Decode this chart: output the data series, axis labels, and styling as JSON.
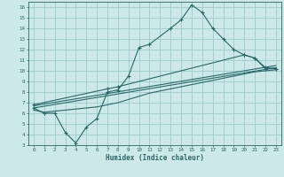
{
  "title": "",
  "xlabel": "Humidex (Indice chaleur)",
  "xlim": [
    -0.5,
    23.5
  ],
  "ylim": [
    3,
    16.5
  ],
  "xticks": [
    0,
    1,
    2,
    3,
    4,
    5,
    6,
    7,
    8,
    9,
    10,
    11,
    12,
    13,
    14,
    15,
    16,
    17,
    18,
    19,
    20,
    21,
    22,
    23
  ],
  "yticks": [
    3,
    4,
    5,
    6,
    7,
    8,
    9,
    10,
    11,
    12,
    13,
    14,
    15,
    16
  ],
  "bg_color": "#cce8e8",
  "grid_color": "#99cccc",
  "line_color": "#2a6868",
  "line1_x": [
    0,
    1,
    2,
    3,
    4,
    5,
    6,
    7,
    8,
    9,
    10,
    11,
    13,
    14,
    15,
    16,
    17,
    18,
    19,
    20,
    21,
    22,
    23
  ],
  "line1_y": [
    6.5,
    6.0,
    6.0,
    4.2,
    3.2,
    4.7,
    5.5,
    8.0,
    8.2,
    9.5,
    12.2,
    12.5,
    14.0,
    14.8,
    16.2,
    15.5,
    14.0,
    13.0,
    12.0,
    11.5,
    11.2,
    10.2,
    10.2
  ],
  "line2_x": [
    0,
    1,
    2,
    3,
    4,
    5,
    6,
    7,
    8,
    9,
    10,
    11,
    12,
    13,
    14,
    15,
    16,
    17,
    18,
    19,
    20,
    21,
    22,
    23
  ],
  "line2_y": [
    6.3,
    6.1,
    6.2,
    6.3,
    6.4,
    6.5,
    6.6,
    6.8,
    7.0,
    7.3,
    7.6,
    7.9,
    8.1,
    8.3,
    8.5,
    8.7,
    8.9,
    9.1,
    9.3,
    9.5,
    9.7,
    9.9,
    10.0,
    10.1
  ],
  "line3_x": [
    0,
    23
  ],
  "line3_y": [
    6.5,
    10.3
  ],
  "line4_x": [
    0,
    23
  ],
  "line4_y": [
    6.7,
    10.5
  ],
  "line5_x": [
    0,
    7,
    8,
    20,
    21,
    22,
    23
  ],
  "line5_y": [
    6.8,
    8.3,
    8.5,
    11.5,
    11.2,
    10.3,
    10.2
  ]
}
